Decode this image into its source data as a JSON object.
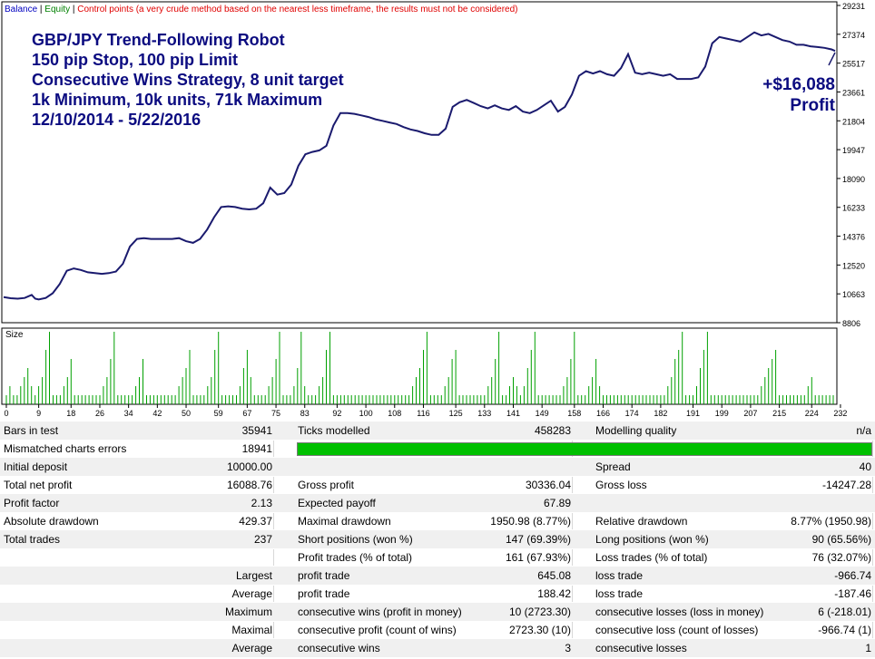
{
  "legend": {
    "balance": "Balance",
    "sep1": " | ",
    "equity": "Equity",
    "sep2": " | ",
    "control": "Control points (a very crude method based on the nearest less timeframe, the results must not be considered)"
  },
  "overlay": {
    "title_lines": [
      "GBP/JPY Trend-Following Robot",
      "150 pip Stop, 100 pip Limit",
      "Consecutive Wins Strategy, 8 unit target",
      "1k Minimum, 10k units, 71k Maximum",
      "12/10/2014 - 5/22/2016"
    ],
    "profit_amount": "+$16,088",
    "profit_label": "Profit"
  },
  "size_label": "Size",
  "colors": {
    "balance": "#1a1a6e",
    "size_bars": "#00a000",
    "title": "#0b0b80",
    "equity_label": "#008000",
    "control_label": "#e00000",
    "quality_bar": "#00c000"
  },
  "chart_data": [
    {
      "type": "line",
      "name": "balance-chart",
      "y_ticks": [
        8806,
        10663,
        12520,
        14376,
        16233,
        18090,
        19947,
        21804,
        23661,
        25517,
        27374,
        29231
      ],
      "ylim": [
        8806,
        29231
      ],
      "xlim": [
        0,
        237
      ],
      "series": [
        {
          "name": "Balance",
          "x": [
            0,
            2,
            4,
            6,
            8,
            9,
            10,
            12,
            14,
            16,
            18,
            20,
            22,
            24,
            26,
            28,
            30,
            32,
            34,
            36,
            38,
            40,
            42,
            44,
            46,
            48,
            50,
            52,
            54,
            56,
            58,
            60,
            62,
            64,
            66,
            68,
            70,
            72,
            74,
            76,
            78,
            80,
            82,
            84,
            86,
            88,
            90,
            92,
            94,
            96,
            98,
            100,
            102,
            104,
            106,
            108,
            110,
            112,
            114,
            116,
            118,
            120,
            122,
            124,
            126,
            128,
            130,
            132,
            134,
            136,
            138,
            140,
            142,
            144,
            146,
            148,
            150,
            152,
            154,
            156,
            158,
            160,
            162,
            164,
            166,
            168,
            170,
            172,
            174,
            176,
            178,
            180,
            182,
            184,
            186,
            188,
            190,
            192,
            194,
            196,
            198,
            200,
            202,
            204,
            206,
            208,
            210,
            212,
            214,
            216,
            218,
            220,
            222,
            224,
            226,
            228,
            230,
            232,
            234,
            236,
            237
          ],
          "y": [
            10450,
            10380,
            10350,
            10400,
            10600,
            10350,
            10300,
            10400,
            10700,
            11300,
            12150,
            12300,
            12200,
            12050,
            12000,
            11950,
            12000,
            12100,
            12600,
            13700,
            14200,
            14250,
            14200,
            14200,
            14200,
            14200,
            14250,
            14050,
            13950,
            14200,
            14800,
            15600,
            16250,
            16300,
            16250,
            16150,
            16100,
            16150,
            16500,
            17500,
            17050,
            17150,
            17700,
            18900,
            19650,
            19800,
            19900,
            20200,
            21500,
            22300,
            22300,
            22250,
            22150,
            22050,
            21900,
            21800,
            21700,
            21600,
            21400,
            21250,
            21150,
            21000,
            20900,
            20900,
            21300,
            22700,
            23000,
            23150,
            22950,
            22750,
            22600,
            22800,
            22600,
            22500,
            22750,
            22400,
            22300,
            22500,
            22800,
            23100,
            22400,
            22700,
            23500,
            24700,
            25000,
            24850,
            25000,
            24800,
            24700,
            25200,
            26100,
            24900,
            24800,
            24900,
            24800,
            24700,
            24800,
            24500,
            24500,
            24500,
            24600,
            25300,
            26800,
            27200,
            27100,
            27000,
            26900,
            27200,
            27500,
            27300,
            27400,
            27200,
            27000,
            26900,
            26700,
            26700,
            26600,
            26550,
            26500,
            26400,
            26300
          ]
        }
      ]
    },
    {
      "type": "bar",
      "name": "size-chart",
      "x_ticks": [
        0,
        9,
        18,
        26,
        34,
        42,
        50,
        59,
        67,
        75,
        83,
        92,
        100,
        108,
        116,
        125,
        133,
        141,
        149,
        158,
        166,
        174,
        182,
        191,
        199,
        207,
        215,
        224,
        232
      ],
      "values": [
        1,
        2,
        1,
        1,
        2,
        3,
        4,
        2,
        1,
        2,
        3,
        6,
        8,
        1,
        1,
        1,
        2,
        3,
        5,
        1,
        1,
        1,
        1,
        1,
        1,
        1,
        1,
        2,
        3,
        5,
        8,
        1,
        1,
        1,
        1,
        1,
        2,
        3,
        5,
        1,
        1,
        1,
        1,
        1,
        1,
        1,
        1,
        1,
        2,
        3,
        4,
        6,
        1,
        1,
        1,
        1,
        2,
        3,
        6,
        8,
        1,
        1,
        1,
        1,
        1,
        2,
        4,
        6,
        3,
        1,
        1,
        1,
        1,
        2,
        3,
        5,
        8,
        1,
        1,
        1,
        2,
        4,
        8,
        2,
        1,
        1,
        1,
        2,
        3,
        6,
        8,
        1,
        1,
        1,
        1,
        1,
        1,
        1,
        1,
        1,
        1,
        1,
        1,
        1,
        1,
        1,
        1,
        1,
        1,
        1,
        1,
        1,
        1,
        2,
        3,
        4,
        6,
        8,
        1,
        1,
        1,
        1,
        2,
        3,
        5,
        6,
        1,
        1,
        1,
        1,
        1,
        1,
        1,
        1,
        2,
        3,
        5,
        8,
        1,
        1,
        2,
        3,
        2,
        1,
        2,
        4,
        6,
        8,
        1,
        1,
        1,
        1,
        1,
        1,
        1,
        2,
        3,
        5,
        8,
        1,
        1,
        1,
        2,
        3,
        5,
        2,
        1,
        1,
        1,
        1,
        1,
        1,
        1,
        1,
        1,
        1,
        1,
        1,
        1,
        1,
        1,
        1,
        1,
        1,
        2,
        3,
        5,
        6,
        8,
        1,
        1,
        1,
        2,
        4,
        6,
        8,
        1,
        1,
        1,
        1,
        1,
        1,
        1,
        1,
        1,
        1,
        1,
        1,
        1,
        1,
        2,
        3,
        4,
        5,
        6,
        1,
        1,
        1,
        1,
        1,
        1,
        1,
        1,
        2,
        3,
        1,
        1,
        1,
        1,
        1,
        1
      ]
    }
  ],
  "report": {
    "rows": [
      {
        "c": [
          {
            "t": "Bars in test",
            "x": 4
          },
          {
            "t": "35941",
            "x": 300,
            "r": 1
          },
          {
            "t": "Ticks modelled",
            "x": 328
          },
          {
            "t": "458283",
            "x": 629,
            "r": 1
          },
          {
            "t": "Modelling quality",
            "x": 656
          },
          {
            "t": "n/a",
            "x": 960,
            "r": 1
          }
        ]
      },
      {
        "c": [
          {
            "t": "Mismatched charts errors",
            "x": 4
          },
          {
            "t": "18941",
            "x": 300,
            "r": 1
          }
        ],
        "bar": true
      },
      {
        "c": [
          {
            "t": "Initial deposit",
            "x": 4
          },
          {
            "t": "10000.00",
            "x": 300,
            "r": 1
          },
          {
            "t": "Spread",
            "x": 656
          },
          {
            "t": "40",
            "x": 960,
            "r": 1
          }
        ]
      },
      {
        "c": [
          {
            "t": "Total net profit",
            "x": 4
          },
          {
            "t": "16088.76",
            "x": 300,
            "r": 1
          },
          {
            "t": "Gross profit",
            "x": 328
          },
          {
            "t": "30336.04",
            "x": 629,
            "r": 1
          },
          {
            "t": "Gross loss",
            "x": 656
          },
          {
            "t": "-14247.28",
            "x": 960,
            "r": 1
          }
        ]
      },
      {
        "c": [
          {
            "t": "Profit factor",
            "x": 4
          },
          {
            "t": "2.13",
            "x": 300,
            "r": 1
          },
          {
            "t": "Expected payoff",
            "x": 328
          },
          {
            "t": "67.89",
            "x": 629,
            "r": 1
          }
        ]
      },
      {
        "c": [
          {
            "t": "Absolute drawdown",
            "x": 4
          },
          {
            "t": "429.37",
            "x": 300,
            "r": 1
          },
          {
            "t": "Maximal drawdown",
            "x": 328
          },
          {
            "t": "1950.98 (8.77%)",
            "x": 629,
            "r": 1
          },
          {
            "t": "Relative drawdown",
            "x": 656
          },
          {
            "t": "8.77% (1950.98)",
            "x": 960,
            "r": 1
          }
        ]
      },
      {
        "c": [
          {
            "t": "Total trades",
            "x": 4
          },
          {
            "t": "237",
            "x": 300,
            "r": 1
          },
          {
            "t": "Short positions (won %)",
            "x": 328
          },
          {
            "t": "147 (69.39%)",
            "x": 629,
            "r": 1
          },
          {
            "t": "Long positions (won %)",
            "x": 656
          },
          {
            "t": "90 (65.56%)",
            "x": 960,
            "r": 1
          }
        ]
      },
      {
        "c": [
          {
            "t": "Profit trades (% of total)",
            "x": 328
          },
          {
            "t": "161 (67.93%)",
            "x": 629,
            "r": 1
          },
          {
            "t": "Loss trades (% of total)",
            "x": 656
          },
          {
            "t": "76 (32.07%)",
            "x": 960,
            "r": 1
          }
        ]
      },
      {
        "c": [
          {
            "t": "Largest",
            "x": 300,
            "r": 1
          },
          {
            "t": "profit trade",
            "x": 328
          },
          {
            "t": "645.08",
            "x": 629,
            "r": 1
          },
          {
            "t": "loss trade",
            "x": 656
          },
          {
            "t": "-966.74",
            "x": 960,
            "r": 1
          }
        ]
      },
      {
        "c": [
          {
            "t": "Average",
            "x": 300,
            "r": 1
          },
          {
            "t": "profit trade",
            "x": 328
          },
          {
            "t": "188.42",
            "x": 629,
            "r": 1
          },
          {
            "t": "loss trade",
            "x": 656
          },
          {
            "t": "-187.46",
            "x": 960,
            "r": 1
          }
        ]
      },
      {
        "c": [
          {
            "t": "Maximum",
            "x": 300,
            "r": 1
          },
          {
            "t": "consecutive wins (profit in money)",
            "x": 328
          },
          {
            "t": "10 (2723.30)",
            "x": 629,
            "r": 1
          },
          {
            "t": "consecutive losses (loss in money)",
            "x": 656
          },
          {
            "t": "6 (-218.01)",
            "x": 960,
            "r": 1
          }
        ]
      },
      {
        "c": [
          {
            "t": "Maximal",
            "x": 300,
            "r": 1
          },
          {
            "t": "consecutive profit (count of wins)",
            "x": 328
          },
          {
            "t": "2723.30 (10)",
            "x": 629,
            "r": 1
          },
          {
            "t": "consecutive loss (count of losses)",
            "x": 656
          },
          {
            "t": "-966.74 (1)",
            "x": 960,
            "r": 1
          }
        ]
      },
      {
        "c": [
          {
            "t": "Average",
            "x": 300,
            "r": 1
          },
          {
            "t": "consecutive wins",
            "x": 328
          },
          {
            "t": "3",
            "x": 629,
            "r": 1
          },
          {
            "t": "consecutive losses",
            "x": 656
          },
          {
            "t": "1",
            "x": 960,
            "r": 1
          }
        ]
      }
    ]
  }
}
